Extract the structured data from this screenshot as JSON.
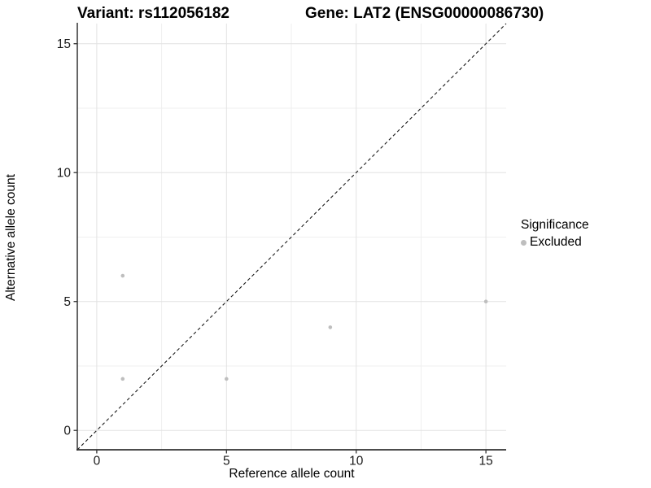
{
  "chart_data": {
    "type": "scatter",
    "title_left": "Variant: rs112056182",
    "title_right": "Gene: LAT2 (ENSG00000086730)",
    "xlabel": "Reference allele count",
    "ylabel": "Alternative allele count",
    "xlim": [
      -0.75,
      15.78
    ],
    "ylim": [
      -0.75,
      15.78
    ],
    "x_ticks": [
      0,
      5,
      10,
      15
    ],
    "y_ticks": [
      0,
      5,
      10,
      15
    ],
    "x_minor_ticks": [
      2.5,
      7.5,
      12.5
    ],
    "y_minor_ticks": [
      2.5,
      7.5,
      12.5
    ],
    "grid": true,
    "identity_line": {
      "slope": 1,
      "intercept": 0,
      "style": "dashed",
      "color": "#1a1a1a"
    },
    "series": [
      {
        "name": "Excluded",
        "color": "#bebebe",
        "points": [
          {
            "x": 1,
            "y": 6
          },
          {
            "x": 1,
            "y": 2
          },
          {
            "x": 5,
            "y": 2
          },
          {
            "x": 9,
            "y": 4
          },
          {
            "x": 15,
            "y": 5
          }
        ]
      }
    ],
    "legend": {
      "title": "Significance",
      "position": "right",
      "items": [
        {
          "label": "Excluded",
          "color": "#bebebe"
        }
      ]
    },
    "colors": {
      "grid_major": "#e2e2e2",
      "grid_minor": "#efefef",
      "axis_line": "#333333",
      "tick_mark": "#333333",
      "tick_text": "#1a1a1a",
      "point": "#bebebe"
    }
  }
}
